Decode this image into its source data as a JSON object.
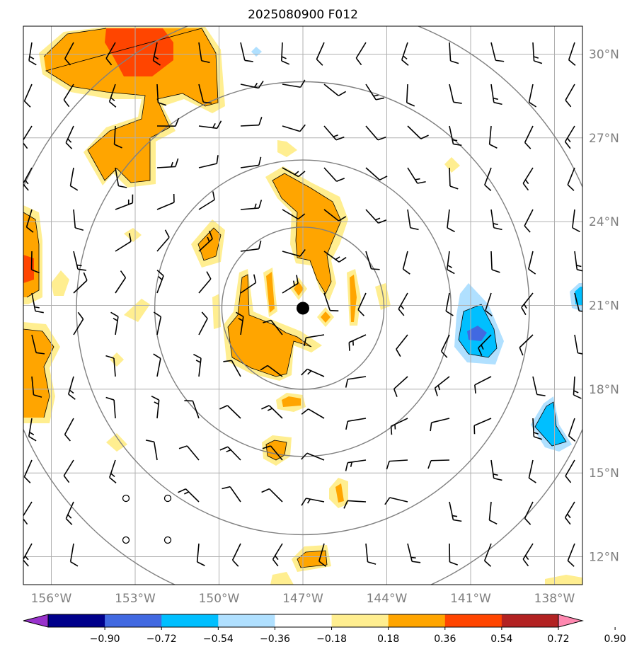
{
  "title": "2025080900 F012",
  "map": {
    "lon_range": [
      -157,
      -137
    ],
    "lat_range": [
      11,
      31
    ],
    "lon_ticks": [
      {
        "value": -156,
        "label": "156°W"
      },
      {
        "value": -153,
        "label": "153°W"
      },
      {
        "value": -150,
        "label": "150°W"
      },
      {
        "value": -147,
        "label": "147°W"
      },
      {
        "value": -144,
        "label": "144°W"
      },
      {
        "value": -141,
        "label": "141°W"
      },
      {
        "value": -138,
        "label": "138°W"
      }
    ],
    "lat_ticks": [
      {
        "value": 30,
        "label": "30°N"
      },
      {
        "value": 27,
        "label": "27°N"
      },
      {
        "value": 24,
        "label": "24°N"
      },
      {
        "value": 21,
        "label": "21°N"
      },
      {
        "value": 18,
        "label": "18°N"
      },
      {
        "value": 15,
        "label": "15°N"
      },
      {
        "value": 12,
        "label": "12°N"
      }
    ],
    "center": {
      "lon": -147.0,
      "lat": 20.9
    },
    "range_rings_deg": [
      2.9,
      5.3,
      8.1,
      10.9
    ],
    "grid_color": "#b0b0b0",
    "ring_color": "#808080"
  },
  "colorbar": {
    "levels": [
      "−0.90",
      "−0.72",
      "−0.54",
      "−0.36",
      "−0.18",
      "0.18",
      "0.36",
      "0.54",
      "0.72",
      "0.90"
    ],
    "colors": [
      "#9932cc",
      "#00008b",
      "#4169e1",
      "#00bfff",
      "#b0e0ff",
      "#ffffff",
      "#ffee90",
      "#ffa500",
      "#ff4500",
      "#b22222",
      "#ff88b0"
    ]
  },
  "shading": {
    "pos_light": "#ffee90",
    "pos_mid": "#ffa500",
    "pos_high": "#ff4500",
    "neg_light": "#b0e0ff",
    "neg_mid": "#00bfff",
    "neg_high": "#4169e1"
  }
}
